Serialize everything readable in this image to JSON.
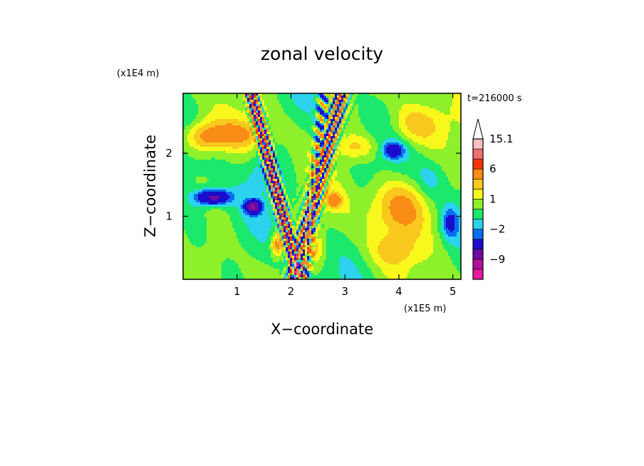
{
  "chart_data": {
    "type": "heatmap",
    "title": "zonal velocity",
    "xlabel": "X−coordinate",
    "ylabel": "Z−coordinate",
    "x_scale_label": "(x1E5 m)",
    "y_scale_label": "(x1E4 m)",
    "time_label": "t=216000 s",
    "xlim": [
      0,
      5.15
    ],
    "ylim": [
      0,
      2.95
    ],
    "x_ticks": [
      {
        "value": 1,
        "label": "1"
      },
      {
        "value": 2,
        "label": "2"
      },
      {
        "value": 3,
        "label": "3"
      },
      {
        "value": 4,
        "label": "4"
      },
      {
        "value": 5,
        "label": "5"
      }
    ],
    "y_ticks": [
      {
        "value": 1,
        "label": "1"
      },
      {
        "value": 2,
        "label": "2"
      }
    ],
    "colorbar": {
      "levels": [
        -15,
        -12,
        -9,
        -6,
        -3,
        -2,
        -1,
        0,
        1,
        2,
        3,
        6,
        9,
        12,
        15.1
      ],
      "colors": [
        "#e8189c",
        "#b0109a",
        "#6c0ca0",
        "#1c0ccc",
        "#0a6cf0",
        "#2cd2ee",
        "#1ce86c",
        "#8ef02a",
        "#f8f81c",
        "#f8c81c",
        "#f88c14",
        "#f2360a",
        "#f07070",
        "#f8c0c0"
      ],
      "labels": [
        {
          "value": 15.1,
          "label": "15.1"
        },
        {
          "value": 6,
          "label": "6"
        },
        {
          "value": 1,
          "label": "1"
        },
        {
          "value": -2,
          "label": "−2"
        },
        {
          "value": -9,
          "label": "−9"
        }
      ]
    },
    "grid": false,
    "legend": "colorbar-right"
  }
}
